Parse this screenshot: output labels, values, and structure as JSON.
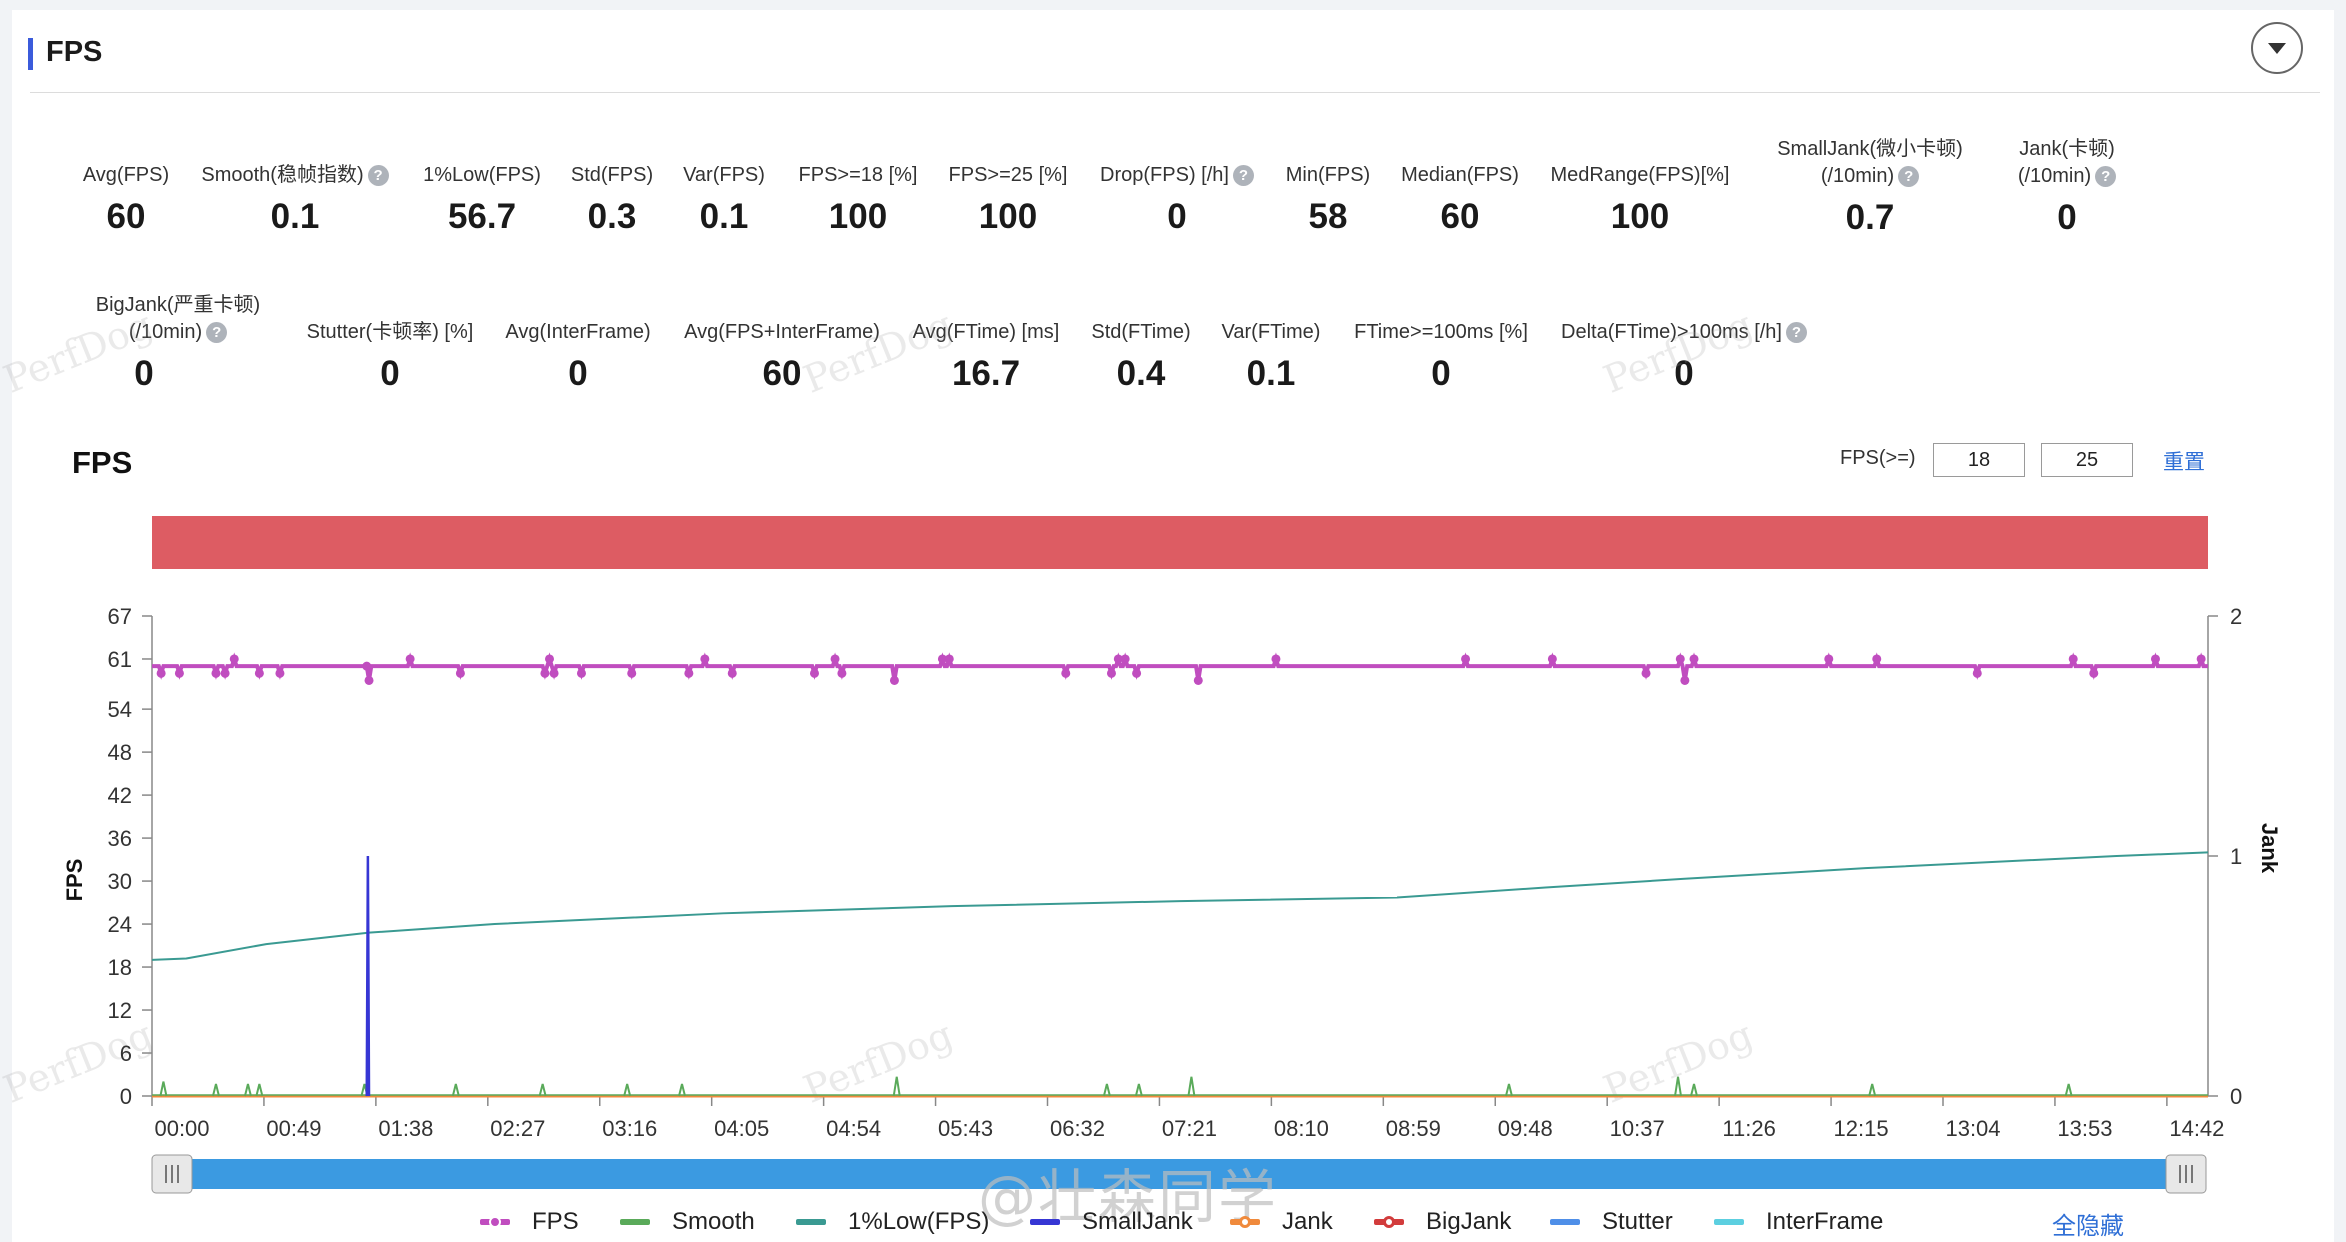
{
  "header": {
    "title": "FPS"
  },
  "metrics_row1": [
    {
      "label": "Avg(FPS)",
      "value": "60"
    },
    {
      "label": "Smooth(稳帧指数)",
      "value": "0.1",
      "help": true
    },
    {
      "label": "1%Low(FPS)",
      "value": "56.7"
    },
    {
      "label": "Std(FPS)",
      "value": "0.3"
    },
    {
      "label": "Var(FPS)",
      "value": "0.1"
    },
    {
      "label": "FPS>=18 [%]",
      "value": "100"
    },
    {
      "label": "FPS>=25 [%]",
      "value": "100"
    },
    {
      "label": "Drop(FPS) [/h]",
      "value": "0",
      "help": true
    },
    {
      "label": "Min(FPS)",
      "value": "58"
    },
    {
      "label": "Median(FPS)",
      "value": "60"
    },
    {
      "label": "MedRange(FPS)[%]",
      "value": "100"
    },
    {
      "label": "SmallJank(微小卡顿)",
      "label2": "(/10min)",
      "value": "0.7",
      "help": true
    },
    {
      "label": "Jank(卡顿)",
      "label2": "(/10min)",
      "value": "0",
      "help": true
    }
  ],
  "metrics_row2": [
    {
      "label": "BigJank(严重卡顿)",
      "label2": "(/10min)",
      "value": "0",
      "help": true
    },
    {
      "label": "Stutter(卡顿率) [%]",
      "value": "0"
    },
    {
      "label": "Avg(InterFrame)",
      "value": "0"
    },
    {
      "label": "Avg(FPS+InterFrame)",
      "value": "60"
    },
    {
      "label": "Avg(FTime) [ms]",
      "value": "16.7"
    },
    {
      "label": "Std(FTime)",
      "value": "0.4"
    },
    {
      "label": "Var(FTime)",
      "value": "0.1"
    },
    {
      "label": "FTime>=100ms [%]",
      "value": "0"
    },
    {
      "label": "Delta(FTime)>100ms [/h]",
      "value": "0",
      "help": true
    }
  ],
  "help_glyph": "?",
  "watermark_text": "PerfDog",
  "chart_panel": {
    "title": "FPS",
    "fps_threshold_label": "FPS(>=)",
    "threshold_values": [
      "18",
      "25"
    ],
    "reset_label": "重置"
  },
  "footer_overlay": "@壮森同学",
  "legend": {
    "items": [
      {
        "label": "FPS",
        "color": "#c04dbf",
        "marker": "dot"
      },
      {
        "label": "Smooth",
        "color": "#5aaa5a"
      },
      {
        "label": "1%Low(FPS)",
        "color": "#3a9a92"
      },
      {
        "label": "SmallJank",
        "color": "#3636d4"
      },
      {
        "label": "Jank",
        "color": "#f08a3c",
        "marker": "dot"
      },
      {
        "label": "BigJank",
        "color": "#d23c3c",
        "marker": "dot"
      },
      {
        "label": "Stutter",
        "color": "#4f8fe8"
      },
      {
        "label": "InterFrame",
        "color": "#5ccfe0"
      }
    ],
    "hide_all_label": "全隐藏"
  },
  "colors": {
    "accent": "#3b5bdb",
    "range_band": "#dd5c63",
    "scrollbar": "#3b9ae1",
    "link": "#2f6fd6"
  },
  "chart_data": {
    "type": "line",
    "title": "FPS",
    "ylabel": "FPS",
    "y2label": "Jank",
    "x_ticks": [
      "00:00",
      "00:49",
      "01:38",
      "02:27",
      "03:16",
      "04:05",
      "04:54",
      "05:43",
      "06:32",
      "07:21",
      "08:10",
      "08:59",
      "09:48",
      "10:37",
      "11:26",
      "12:15",
      "13:04",
      "13:53",
      "14:42"
    ],
    "x_range_seconds": [
      0,
      900
    ],
    "y_ticks": [
      0,
      6,
      12,
      18,
      24,
      30,
      36,
      42,
      48,
      54,
      61,
      67
    ],
    "ylim": [
      0,
      67
    ],
    "y2_ticks": [
      0,
      1,
      2
    ],
    "y2lim": [
      0,
      2
    ],
    "legend_position": "bottom",
    "series": [
      {
        "name": "FPS",
        "axis": "left",
        "color": "#c04dbf",
        "marker": "dot",
        "baseline": 60,
        "deviations": [
          [
            4,
            59
          ],
          [
            12,
            59
          ],
          [
            28,
            59
          ],
          [
            32,
            59
          ],
          [
            36,
            61
          ],
          [
            47,
            59
          ],
          [
            56,
            59
          ],
          [
            94,
            60
          ],
          [
            95,
            58
          ],
          [
            113,
            61
          ],
          [
            135,
            59
          ],
          [
            172,
            59
          ],
          [
            174,
            61
          ],
          [
            176,
            59
          ],
          [
            188,
            59
          ],
          [
            210,
            59
          ],
          [
            235,
            59
          ],
          [
            242,
            61
          ],
          [
            254,
            59
          ],
          [
            290,
            59
          ],
          [
            299,
            61
          ],
          [
            302,
            59
          ],
          [
            325,
            58
          ],
          [
            346,
            61
          ],
          [
            349,
            61
          ],
          [
            400,
            59
          ],
          [
            420,
            59
          ],
          [
            423,
            61
          ],
          [
            426,
            61
          ],
          [
            431,
            59
          ],
          [
            458,
            58
          ],
          [
            492,
            61
          ],
          [
            575,
            61
          ],
          [
            613,
            61
          ],
          [
            654,
            59
          ],
          [
            669,
            61
          ],
          [
            671,
            58
          ],
          [
            675,
            61
          ],
          [
            734,
            61
          ],
          [
            755,
            61
          ],
          [
            799,
            59
          ],
          [
            841,
            61
          ],
          [
            850,
            59
          ],
          [
            877,
            61
          ],
          [
            897,
            61
          ]
        ]
      },
      {
        "name": "Smooth",
        "axis": "right",
        "color": "#5aaa5a",
        "x": [
          0,
          5,
          28,
          42,
          47,
          93,
          133,
          171,
          208,
          232,
          326,
          418,
          432,
          455,
          594,
          668,
          675,
          753,
          839
        ],
        "values": [
          0,
          0.06,
          0.05,
          0.05,
          0.05,
          0.05,
          0.05,
          0.05,
          0.05,
          0.05,
          0.08,
          0.05,
          0.05,
          0.08,
          0.05,
          0.08,
          0.05,
          0.05,
          0.05
        ]
      },
      {
        "name": "1%Low(FPS)",
        "axis": "left",
        "color": "#3a9a92",
        "x": [
          0,
          15,
          50,
          95,
          150,
          250,
          350,
          450,
          545,
          610,
          670,
          750,
          860,
          900
        ],
        "values": [
          19,
          19.2,
          21.2,
          22.8,
          24.0,
          25.5,
          26.5,
          27.2,
          27.7,
          29.1,
          30.3,
          31.8,
          33.5,
          34.0
        ]
      },
      {
        "name": "SmallJank",
        "axis": "right",
        "color": "#3636d4",
        "x": [
          94,
          94.5,
          95
        ],
        "values": [
          0,
          1.0,
          0
        ]
      },
      {
        "name": "Jank",
        "axis": "right",
        "color": "#f08a3c",
        "x": [
          0,
          900
        ],
        "values": [
          0,
          0
        ]
      },
      {
        "name": "BigJank",
        "axis": "right",
        "color": "#d23c3c",
        "x": [
          0,
          900
        ],
        "values": [
          0,
          0
        ]
      },
      {
        "name": "Stutter",
        "axis": "right",
        "color": "#4f8fe8",
        "x": [],
        "values": []
      },
      {
        "name": "InterFrame",
        "axis": "right",
        "color": "#5ccfe0",
        "x": [],
        "values": []
      }
    ]
  }
}
